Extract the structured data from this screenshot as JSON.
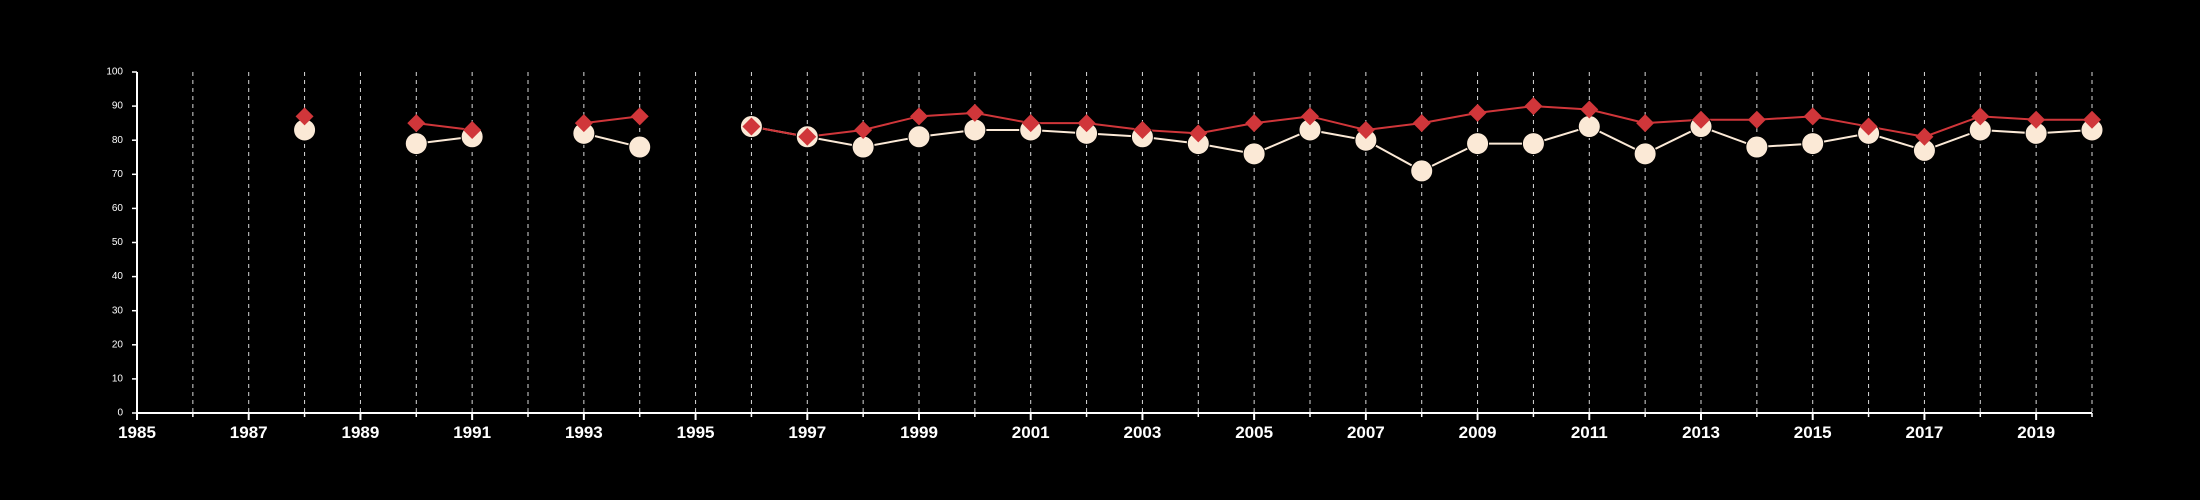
{
  "chart_data": {
    "type": "line",
    "title": "",
    "xlabel": "",
    "ylabel": "",
    "xlim": [
      1985,
      2020
    ],
    "ylim": [
      0,
      100
    ],
    "grid": "vertical-dashed",
    "x_ticks": [
      1985,
      1987,
      1989,
      1991,
      1993,
      1995,
      1997,
      1999,
      2001,
      2003,
      2005,
      2007,
      2009,
      2011,
      2013,
      2015,
      2017,
      2019
    ],
    "y_ticks": [
      0,
      10,
      20,
      30,
      40,
      50,
      60,
      70,
      80,
      90,
      100
    ],
    "x": [
      1988,
      1990,
      1991,
      1993,
      1994,
      1996,
      1997,
      1998,
      1999,
      2000,
      2001,
      2002,
      2003,
      2004,
      2005,
      2006,
      2007,
      2008,
      2009,
      2010,
      2011,
      2012,
      2013,
      2014,
      2015,
      2016,
      2017,
      2018,
      2019,
      2020
    ],
    "series": [
      {
        "marker": "diamond",
        "color": "#d0363a",
        "values": [
          87,
          85,
          83,
          85,
          87,
          84,
          81,
          83,
          87,
          88,
          85,
          85,
          83,
          82,
          85,
          87,
          83,
          85,
          88,
          90,
          89,
          85,
          86,
          86,
          87,
          84,
          81,
          87,
          86,
          86
        ]
      },
      {
        "marker": "circle",
        "color": "#fbe9d6",
        "values": [
          83,
          79,
          81,
          82,
          78,
          84,
          81,
          78,
          81,
          83,
          83,
          82,
          81,
          79,
          76,
          83,
          80,
          71,
          79,
          79,
          84,
          76,
          84,
          78,
          79,
          82,
          77,
          83,
          82,
          83
        ]
      }
    ],
    "segments": [
      [
        0,
        0
      ],
      [
        1,
        2
      ],
      [
        3,
        4
      ],
      [
        5,
        29
      ]
    ]
  }
}
